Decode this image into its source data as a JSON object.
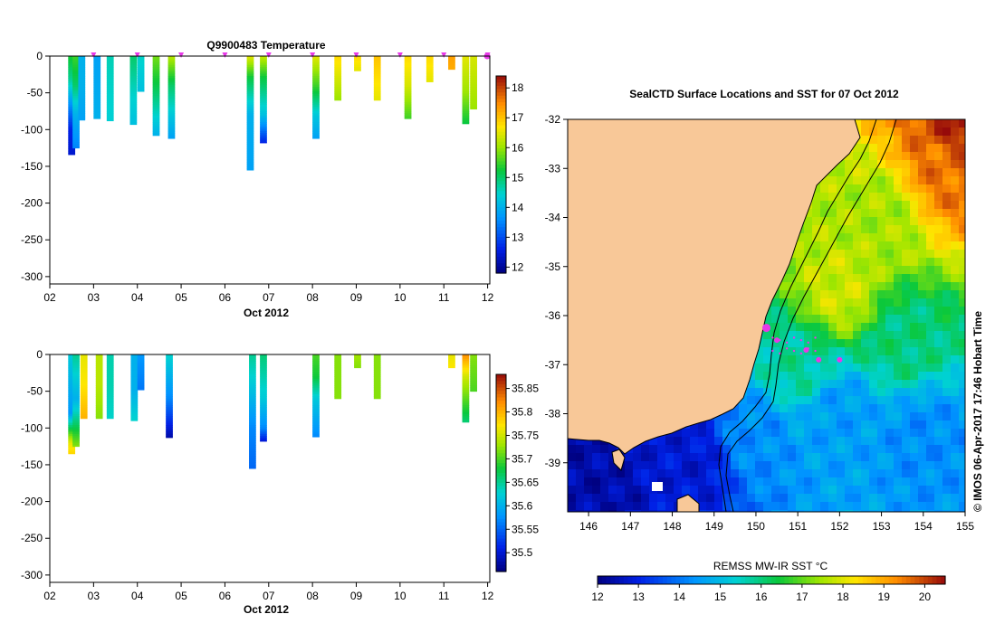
{
  "panel_top": {
    "title": "Q9900483  Temperature",
    "ylim": [
      -310,
      0
    ],
    "yticks": [
      0,
      -50,
      -100,
      -150,
      -200,
      -250,
      -300
    ],
    "xlim": [
      2.0,
      12.05
    ],
    "xticks": [
      "02",
      "03",
      "04",
      "05",
      "06",
      "07",
      "08",
      "09",
      "10",
      "11",
      "12"
    ],
    "xlabel": "Oct 2012",
    "colorbar": {
      "min": 11.8,
      "max": 18.4,
      "ticks": [
        12,
        13,
        14,
        15,
        16,
        17,
        18
      ]
    }
  },
  "panel_bottom": {
    "title": "",
    "ylim": [
      -310,
      0
    ],
    "yticks": [
      0,
      -50,
      -100,
      -150,
      -200,
      -250,
      -300
    ],
    "xlim": [
      2.0,
      12.05
    ],
    "xticks": [
      "02",
      "03",
      "04",
      "05",
      "06",
      "07",
      "08",
      "09",
      "10",
      "11",
      "12"
    ],
    "xlabel": "Oct 2012",
    "colorbar": {
      "min": 35.46,
      "max": 35.88,
      "ticks": [
        35.5,
        35.55,
        35.6,
        35.65,
        35.7,
        35.75,
        35.8,
        35.85
      ]
    }
  },
  "map": {
    "title": "SealCTD Surface Locations and SST for 07 Oct 2012",
    "xlim": [
      145.5,
      155
    ],
    "ylim": [
      -40,
      -32
    ],
    "xticks": [
      146,
      147,
      148,
      149,
      150,
      151,
      152,
      153,
      154,
      155
    ],
    "yticks": [
      -32,
      -33,
      -34,
      -35,
      -36,
      -37,
      -38,
      -39
    ],
    "colorbar_label": "REMSS MW-IR SST °C",
    "colorbar": {
      "min": 12,
      "max": 20.5,
      "ticks": [
        12,
        13,
        14,
        15,
        16,
        17,
        18,
        19,
        20
      ]
    },
    "side_label": "© IMOS 06-Apr-2017 17:46 Hobart Time"
  },
  "colors": {
    "land": "#f8c898",
    "marker": "#e838e8",
    "sst_colormap": "jet"
  },
  "chart_data": [
    {
      "type": "heatmap",
      "title": "Q9900483  Temperature",
      "xlabel": "Oct 2012",
      "ylabel": "",
      "units": "°C",
      "profiles": [
        {
          "day": 2.42,
          "max_depth": -134,
          "values": [
            [
              0,
              15.3
            ],
            [
              -30,
              14.8
            ],
            [
              -60,
              13.8
            ],
            [
              -100,
              12.6
            ],
            [
              -134,
              12.4
            ]
          ]
        },
        {
          "day": 2.52,
          "max_depth": -125,
          "values": [
            [
              0,
              15.5
            ],
            [
              -40,
              15.0
            ],
            [
              -80,
              14.0
            ],
            [
              -125,
              13.5
            ]
          ]
        },
        {
          "day": 2.65,
          "max_depth": -87,
          "values": [
            [
              0,
              14.0
            ],
            [
              -40,
              14.0
            ],
            [
              -87,
              13.8
            ]
          ]
        },
        {
          "day": 3.0,
          "max_depth": -85,
          "values": [
            [
              0,
              13.8
            ],
            [
              -40,
              13.9
            ],
            [
              -85,
              14.0
            ]
          ]
        },
        {
          "day": 3.3,
          "max_depth": -88,
          "values": [
            [
              0,
              14.6
            ],
            [
              -40,
              14.5
            ],
            [
              -88,
              14.4
            ]
          ]
        },
        {
          "day": 3.83,
          "max_depth": -93,
          "values": [
            [
              0,
              15.0
            ],
            [
              -50,
              14.5
            ],
            [
              -93,
              14.2
            ]
          ]
        },
        {
          "day": 4.0,
          "max_depth": -48,
          "values": [
            [
              0,
              14.5
            ],
            [
              -48,
              14.2
            ]
          ]
        },
        {
          "day": 4.35,
          "max_depth": -108,
          "values": [
            [
              0,
              15.8
            ],
            [
              -50,
              15.0
            ],
            [
              -108,
              14.0
            ]
          ]
        },
        {
          "day": 4.7,
          "max_depth": -112,
          "values": [
            [
              0,
              16.2
            ],
            [
              -40,
              15.0
            ],
            [
              -80,
              14.3
            ],
            [
              -112,
              13.8
            ]
          ]
        },
        {
          "day": 6.5,
          "max_depth": -155,
          "values": [
            [
              0,
              16.5
            ],
            [
              -30,
              15.2
            ],
            [
              -80,
              14.0
            ],
            [
              -155,
              13.8
            ]
          ]
        },
        {
          "day": 6.8,
          "max_depth": -118,
          "values": [
            [
              0,
              16.3
            ],
            [
              -30,
              15.2
            ],
            [
              -80,
              14.2
            ],
            [
              -118,
              12.6
            ]
          ]
        },
        {
          "day": 8.0,
          "max_depth": -112,
          "values": [
            [
              0,
              16.5
            ],
            [
              -40,
              15.5
            ],
            [
              -80,
              14.3
            ],
            [
              -112,
              13.8
            ]
          ]
        },
        {
          "day": 8.5,
          "max_depth": -60,
          "values": [
            [
              0,
              16.8
            ],
            [
              -60,
              16.0
            ]
          ]
        },
        {
          "day": 8.95,
          "max_depth": -20,
          "values": [
            [
              0,
              16.8
            ],
            [
              -20,
              16.5
            ]
          ]
        },
        {
          "day": 9.4,
          "max_depth": -60,
          "values": [
            [
              0,
              17.0
            ],
            [
              -60,
              16.5
            ]
          ]
        },
        {
          "day": 10.1,
          "max_depth": -85,
          "values": [
            [
              0,
              16.8
            ],
            [
              -40,
              16.4
            ],
            [
              -85,
              15.5
            ]
          ]
        },
        {
          "day": 10.6,
          "max_depth": -35,
          "values": [
            [
              0,
              16.8
            ],
            [
              -35,
              16.5
            ]
          ]
        },
        {
          "day": 11.1,
          "max_depth": -18,
          "values": [
            [
              0,
              17.3
            ],
            [
              -18,
              17.2
            ]
          ]
        },
        {
          "day": 11.42,
          "max_depth": -92,
          "values": [
            [
              0,
              16.5
            ],
            [
              -50,
              16.0
            ],
            [
              -92,
              15.2
            ]
          ]
        },
        {
          "day": 11.6,
          "max_depth": -72,
          "values": [
            [
              0,
              16.4
            ],
            [
              -72,
              16.0
            ]
          ]
        }
      ]
    },
    {
      "type": "heatmap",
      "title": "",
      "xlabel": "Oct 2012",
      "ylabel": "",
      "units": "salinity",
      "profiles": [
        {
          "day": 2.42,
          "max_depth": -135,
          "values": [
            [
              0,
              35.62
            ],
            [
              -40,
              35.6
            ],
            [
              -80,
              35.58
            ],
            [
              -120,
              35.76
            ],
            [
              -135,
              35.78
            ]
          ]
        },
        {
          "day": 2.52,
          "max_depth": -125,
          "values": [
            [
              0,
              35.65
            ],
            [
              -60,
              35.6
            ],
            [
              -125,
              35.72
            ]
          ]
        },
        {
          "day": 2.7,
          "max_depth": -87,
          "values": [
            [
              0,
              35.76
            ],
            [
              -40,
              35.77
            ],
            [
              -87,
              35.8
            ]
          ]
        },
        {
          "day": 3.05,
          "max_depth": -87,
          "values": [
            [
              0,
              35.74
            ],
            [
              -40,
              35.74
            ],
            [
              -87,
              35.72
            ]
          ]
        },
        {
          "day": 3.3,
          "max_depth": -87,
          "values": [
            [
              0,
              35.64
            ],
            [
              -40,
              35.64
            ],
            [
              -87,
              35.63
            ]
          ]
        },
        {
          "day": 3.85,
          "max_depth": -90,
          "values": [
            [
              0,
              35.6
            ],
            [
              -50,
              35.6
            ],
            [
              -90,
              35.63
            ]
          ]
        },
        {
          "day": 4.0,
          "max_depth": -48,
          "values": [
            [
              0,
              35.58
            ],
            [
              -48,
              35.56
            ]
          ]
        },
        {
          "day": 4.65,
          "max_depth": -113,
          "values": [
            [
              0,
              35.63
            ],
            [
              -30,
              35.6
            ],
            [
              -60,
              35.57
            ],
            [
              -113,
              35.48
            ]
          ]
        },
        {
          "day": 6.55,
          "max_depth": -155,
          "values": [
            [
              0,
              35.65
            ],
            [
              -40,
              35.62
            ],
            [
              -100,
              35.57
            ],
            [
              -155,
              35.55
            ]
          ]
        },
        {
          "day": 6.8,
          "max_depth": -118,
          "values": [
            [
              0,
              35.66
            ],
            [
              -60,
              35.62
            ],
            [
              -100,
              35.57
            ],
            [
              -118,
              35.5
            ]
          ]
        },
        {
          "day": 8.0,
          "max_depth": -112,
          "values": [
            [
              0,
              35.7
            ],
            [
              -30,
              35.68
            ],
            [
              -60,
              35.62
            ],
            [
              -112,
              35.57
            ]
          ]
        },
        {
          "day": 8.5,
          "max_depth": -60,
          "values": [
            [
              0,
              35.72
            ],
            [
              -60,
              35.72
            ]
          ]
        },
        {
          "day": 8.95,
          "max_depth": -18,
          "values": [
            [
              0,
              35.73
            ],
            [
              -18,
              35.72
            ]
          ]
        },
        {
          "day": 9.4,
          "max_depth": -60,
          "values": [
            [
              0,
              35.72
            ],
            [
              -60,
              35.72
            ]
          ]
        },
        {
          "day": 11.1,
          "max_depth": -18,
          "values": [
            [
              0,
              35.76
            ],
            [
              -18,
              35.77
            ]
          ]
        },
        {
          "day": 11.42,
          "max_depth": -92,
          "values": [
            [
              0,
              35.82
            ],
            [
              -30,
              35.75
            ],
            [
              -92,
              35.66
            ]
          ]
        },
        {
          "day": 11.6,
          "max_depth": -50,
          "values": [
            [
              0,
              35.72
            ],
            [
              -50,
              35.7
            ]
          ]
        }
      ]
    },
    {
      "type": "heatmap",
      "title": "SealCTD Surface Locations and SST for 07 Oct 2012",
      "xlabel": "",
      "ylabel": "",
      "units": "°C",
      "description": "SST field (sea-surface temperature) with coastline and CTD surface locations",
      "xlim": [
        145.5,
        155
      ],
      "ylim": [
        -40,
        -32
      ],
      "sst_anchors": [
        {
          "lon": 146.0,
          "lat": -39.5,
          "sst": 12.4
        },
        {
          "lon": 148.5,
          "lat": -39.0,
          "sst": 12.8
        },
        {
          "lon": 150.0,
          "lat": -38.5,
          "sst": 14.3
        },
        {
          "lon": 152.0,
          "lat": -38.0,
          "sst": 14.5
        },
        {
          "lon": 154.0,
          "lat": -38.5,
          "sst": 14.3
        },
        {
          "lon": 151.0,
          "lat": -37.0,
          "sst": 15.8
        },
        {
          "lon": 153.5,
          "lat": -36.5,
          "sst": 16.0
        },
        {
          "lon": 152.0,
          "lat": -35.5,
          "sst": 17.8
        },
        {
          "lon": 153.0,
          "lat": -34.0,
          "sst": 17.5
        },
        {
          "lon": 154.5,
          "lat": -33.0,
          "sst": 19.5
        },
        {
          "lon": 155.0,
          "lat": -32.2,
          "sst": 20.3
        }
      ],
      "ctd_locations": [
        {
          "lon": 150.25,
          "lat": -36.25
        },
        {
          "lon": 150.5,
          "lat": -36.5
        },
        {
          "lon": 151.2,
          "lat": -36.7
        },
        {
          "lon": 151.5,
          "lat": -36.9
        },
        {
          "lon": 152.0,
          "lat": -36.9
        }
      ]
    }
  ]
}
